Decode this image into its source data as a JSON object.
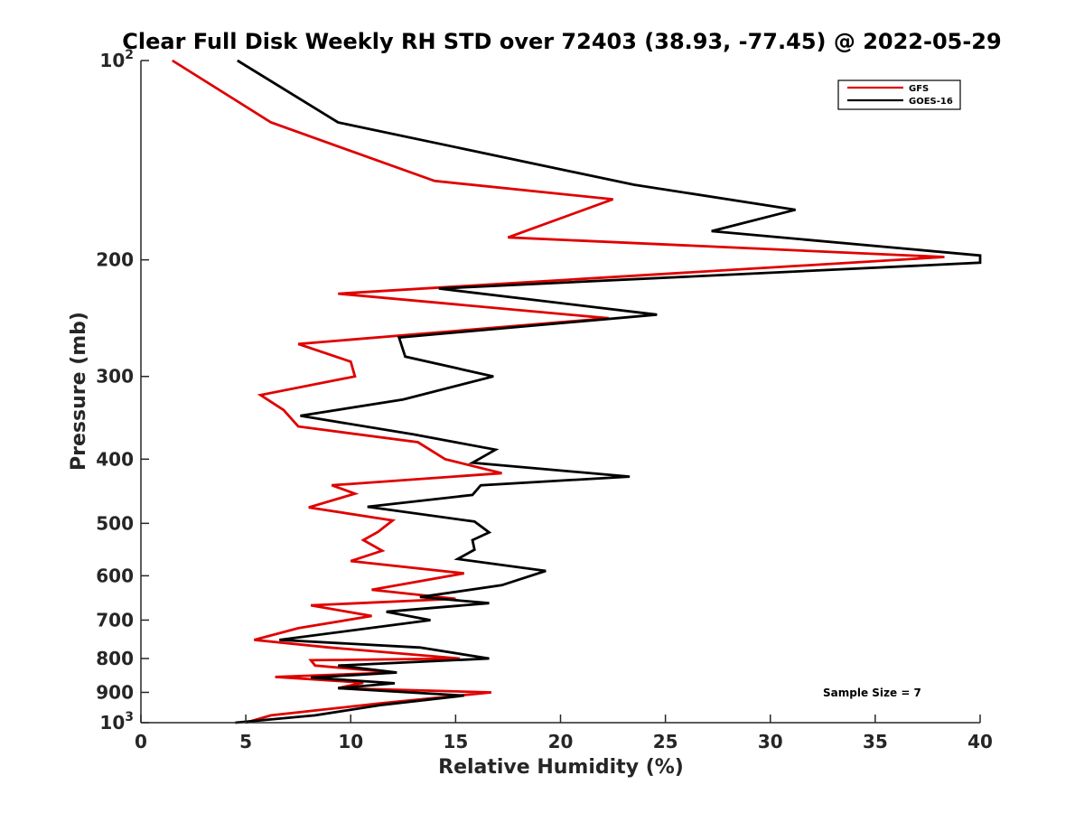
{
  "chart_data": {
    "type": "line",
    "title": "Clear Full Disk Weekly RH STD over 72403 (38.93, -77.45) @ 2022-05-29",
    "xlabel": "Relative Humidity (%)",
    "ylabel": "Pressure (mb)",
    "xlim": [
      0,
      40
    ],
    "ylim": [
      100,
      1000
    ],
    "y_scale": "log",
    "y_reversed": true,
    "x_ticks": [
      "0",
      "5",
      "10",
      "15",
      "20",
      "25",
      "30",
      "35",
      "40"
    ],
    "y_ticks": [
      {
        "value": 100,
        "base": "10",
        "exp": "2"
      },
      {
        "value": 200,
        "label": "200"
      },
      {
        "value": 300,
        "label": "300"
      },
      {
        "value": 400,
        "label": "400"
      },
      {
        "value": 500,
        "label": "500"
      },
      {
        "value": 600,
        "label": "600"
      },
      {
        "value": 700,
        "label": "700"
      },
      {
        "value": 800,
        "label": "800"
      },
      {
        "value": 900,
        "label": "900"
      },
      {
        "value": 1000,
        "base": "10",
        "exp": "3"
      }
    ],
    "legend_position": "top-right",
    "annotation": "Sample Size = 7",
    "series": [
      {
        "name": "GFS",
        "color": "#e00000",
        "points": [
          [
            1.5,
            100
          ],
          [
            6.2,
            124
          ],
          [
            14,
            152
          ],
          [
            22.5,
            162
          ],
          [
            17.5,
            185
          ],
          [
            38.3,
            198
          ],
          [
            9.4,
            225
          ],
          [
            22.3,
            245
          ],
          [
            7.5,
            268
          ],
          [
            10,
            285
          ],
          [
            10.2,
            300
          ],
          [
            5.7,
            320
          ],
          [
            6.8,
            337
          ],
          [
            7.5,
            357
          ],
          [
            13.2,
            377
          ],
          [
            14.5,
            400
          ],
          [
            17.2,
            420
          ],
          [
            9.1,
            438
          ],
          [
            10.2,
            451
          ],
          [
            8,
            473
          ],
          [
            12,
            495
          ],
          [
            11.3,
            515
          ],
          [
            10.6,
            530
          ],
          [
            11.5,
            550
          ],
          [
            10,
            570
          ],
          [
            15.4,
            595
          ],
          [
            11,
            630
          ],
          [
            15,
            650
          ],
          [
            8.1,
            665
          ],
          [
            11,
            690
          ],
          [
            7.5,
            720
          ],
          [
            5.4,
            750
          ],
          [
            9,
            770
          ],
          [
            15.2,
            800
          ],
          [
            8.1,
            805
          ],
          [
            8.3,
            820
          ],
          [
            12.1,
            840
          ],
          [
            6.4,
            853
          ],
          [
            10.6,
            870
          ],
          [
            9.4,
            887
          ],
          [
            16.7,
            900
          ],
          [
            11.4,
            935
          ],
          [
            6.2,
            975
          ],
          [
            5,
            1000
          ]
        ]
      },
      {
        "name": "GOES-16",
        "color": "#000000",
        "points": [
          [
            4.6,
            100
          ],
          [
            9.4,
            124
          ],
          [
            23.5,
            154
          ],
          [
            31.2,
            168
          ],
          [
            27.2,
            181
          ],
          [
            40,
            197
          ],
          [
            40,
            202
          ],
          [
            14.2,
            221
          ],
          [
            24.6,
            242
          ],
          [
            12.3,
            262
          ],
          [
            12.6,
            280
          ],
          [
            16.8,
            300
          ],
          [
            12.5,
            325
          ],
          [
            7.6,
            344
          ],
          [
            13,
            367
          ],
          [
            16.9,
            387
          ],
          [
            15.8,
            405
          ],
          [
            23.3,
            425
          ],
          [
            16.2,
            438
          ],
          [
            15.8,
            453
          ],
          [
            10.8,
            472
          ],
          [
            15.9,
            497
          ],
          [
            16.6,
            516
          ],
          [
            15.8,
            530
          ],
          [
            15.9,
            548
          ],
          [
            15.1,
            566
          ],
          [
            19.3,
            590
          ],
          [
            17.2,
            620
          ],
          [
            13.3,
            646
          ],
          [
            16.6,
            660
          ],
          [
            11.7,
            680
          ],
          [
            13.8,
            700
          ],
          [
            6.6,
            750
          ],
          [
            13.3,
            770
          ],
          [
            16.6,
            800
          ],
          [
            9.4,
            820
          ],
          [
            12.2,
            840
          ],
          [
            8.1,
            855
          ],
          [
            12.1,
            872
          ],
          [
            9.4,
            887
          ],
          [
            15.4,
            910
          ],
          [
            11.5,
            940
          ],
          [
            8.3,
            975
          ],
          [
            4.5,
            1000
          ]
        ]
      }
    ]
  }
}
